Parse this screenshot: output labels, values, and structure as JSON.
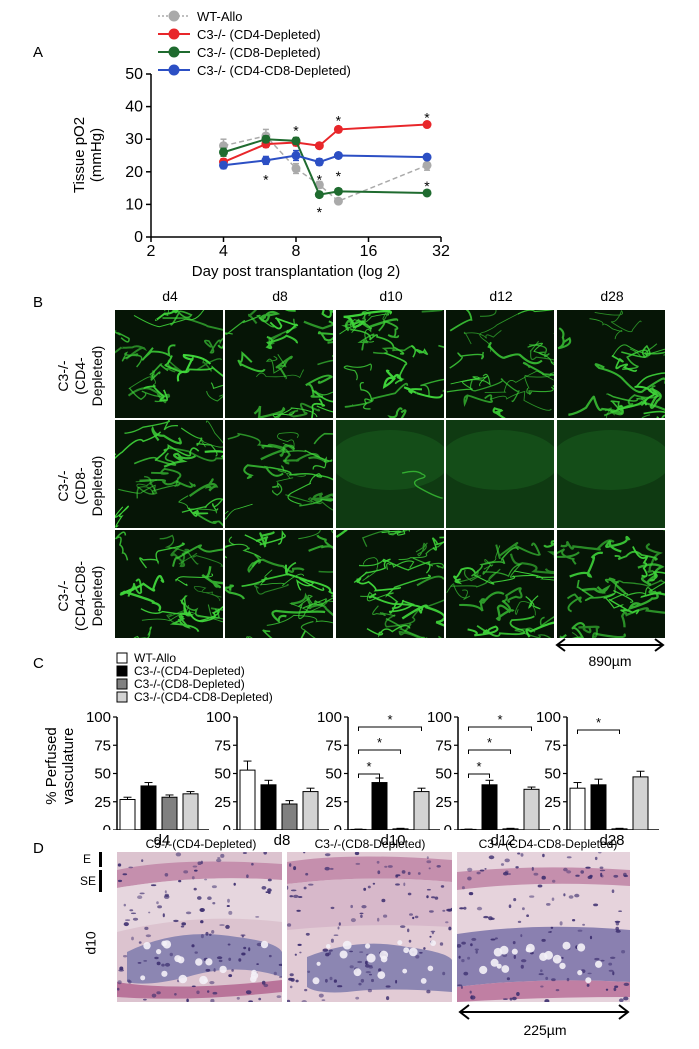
{
  "panels": {
    "a": "A",
    "b": "B",
    "c": "C",
    "d": "D"
  },
  "chart_data": [
    {
      "type": "line",
      "xscale": "log2",
      "xlabel": "Day post transplantation (log 2)",
      "ylabel": "Tissue pO2 (mmHg)",
      "ylabel_lines": [
        "Tissue pO2",
        "(mmHg)"
      ],
      "xticks": [
        2,
        4,
        8,
        16,
        32
      ],
      "yticks": [
        0,
        10,
        20,
        30,
        40,
        50
      ],
      "xlim": [
        2,
        32
      ],
      "ylim": [
        0,
        50
      ],
      "legend_position": "top",
      "series": [
        {
          "name": "WT-Allo",
          "color": "#aaaaaa",
          "dashed": true,
          "x": [
            4,
            6,
            8,
            10,
            12,
            28
          ],
          "y": [
            28,
            31,
            21,
            16,
            11,
            22
          ],
          "err": [
            2,
            2,
            1.5,
            1,
            0.5,
            1.5
          ]
        },
        {
          "name": "C3-/- (CD4-Depleted)",
          "color": "#e8262a",
          "x": [
            4,
            6,
            8,
            10,
            12,
            28
          ],
          "y": [
            23,
            28.5,
            29,
            28,
            33,
            34.5
          ],
          "err": [
            1,
            1,
            1,
            0.8,
            0.8,
            0.8
          ]
        },
        {
          "name": "C3-/- (CD8-Depleted)",
          "color": "#1f6b2f",
          "x": [
            4,
            6,
            8,
            10,
            12,
            28
          ],
          "y": [
            26,
            30,
            29.5,
            13,
            14,
            13.5
          ],
          "err": [
            1.2,
            1,
            1,
            0.8,
            0.5,
            0.5
          ]
        },
        {
          "name": "C3-/- (CD4-CD8-Depleted)",
          "color": "#2c4fc4",
          "x": [
            4,
            6,
            8,
            10,
            12,
            28
          ],
          "y": [
            22,
            23.5,
            25,
            23,
            25,
            24.5
          ],
          "err": [
            1,
            1.2,
            1.5,
            1,
            0.8,
            0.8
          ]
        }
      ],
      "annotations": [
        {
          "text": "*",
          "x": 6,
          "y": 18
        },
        {
          "text": "*",
          "x": 8,
          "y": 33
        },
        {
          "text": "*",
          "x": 10,
          "y": 8
        },
        {
          "text": "*",
          "x": 10,
          "y": 18
        },
        {
          "text": "*",
          "x": 12,
          "y": 36
        },
        {
          "text": "*",
          "x": 12,
          "y": 19
        },
        {
          "text": "*",
          "x": 28,
          "y": 37
        },
        {
          "text": "*",
          "x": 28,
          "y": 16
        }
      ]
    },
    {
      "type": "bar",
      "ylabel": "% Perfused vasculature",
      "ylabel_lines": [
        "% Perfused",
        "vasculature"
      ],
      "yticks": [
        0,
        25,
        50,
        75,
        100
      ],
      "ylim": [
        0,
        100
      ],
      "legend_position": "top-left",
      "legend": [
        "WT-Allo",
        "C3-/-(CD4-Depleted)",
        "C3-/-(CD8-Depleted)",
        "C3-/-(CD4-CD8-Depleted)"
      ],
      "colors": [
        "#ffffff",
        "#000000",
        "#808080",
        "#d3d3d3"
      ],
      "groups": [
        {
          "label": "d4",
          "values": [
            27,
            39,
            29,
            32
          ],
          "err": [
            2,
            3,
            2,
            2
          ],
          "sig": []
        },
        {
          "label": "d8",
          "values": [
            53,
            40,
            23,
            34
          ],
          "err": [
            8,
            4,
            3,
            3
          ],
          "sig": []
        },
        {
          "label": "d10",
          "values": [
            0.5,
            42,
            1,
            34
          ],
          "err": [
            0.3,
            4,
            0.5,
            3
          ],
          "sig": [
            [
              0,
              1
            ],
            [
              0,
              2
            ],
            [
              0,
              3
            ]
          ],
          "sig_label": "*"
        },
        {
          "label": "d12",
          "values": [
            0.5,
            40,
            1,
            36
          ],
          "err": [
            0.3,
            4,
            0.5,
            2
          ],
          "sig": [
            [
              0,
              1
            ],
            [
              0,
              2
            ],
            [
              0,
              3
            ]
          ],
          "sig_label": "*"
        },
        {
          "label": "d28",
          "values": [
            37,
            40,
            1,
            47
          ],
          "err": [
            5,
            5,
            0.5,
            5
          ],
          "sig": [
            [
              0,
              2
            ]
          ],
          "sig_label": "*"
        }
      ]
    }
  ],
  "panel_b": {
    "columns": [
      "d4",
      "d8",
      "d10",
      "d12",
      "d28"
    ],
    "rows": [
      {
        "label": [
          "C3-/-",
          "(CD4-",
          "Depleted)"
        ],
        "density": [
          0.9,
          0.95,
          0.9,
          0.85,
          0.8
        ]
      },
      {
        "label": [
          "C3-/-",
          "(CD8-",
          "Depleted)"
        ],
        "density": [
          0.8,
          0.6,
          0.05,
          0.0,
          0.0
        ]
      },
      {
        "label": [
          "C3-/-",
          "(CD4-CD8-",
          "Depleted)"
        ],
        "density": [
          0.85,
          1.0,
          0.95,
          0.9,
          1.0
        ]
      }
    ],
    "scale_bar": "890µm"
  },
  "panel_d": {
    "titles": [
      "C3-/-(CD4-Depleted)",
      "C3-/-(CD8-Depleted)",
      "C3-/-(CD4-CD8-Depleted)"
    ],
    "labels": {
      "e": "E",
      "se": "SE",
      "day": "d10"
    },
    "scale_bar": "225µm"
  }
}
